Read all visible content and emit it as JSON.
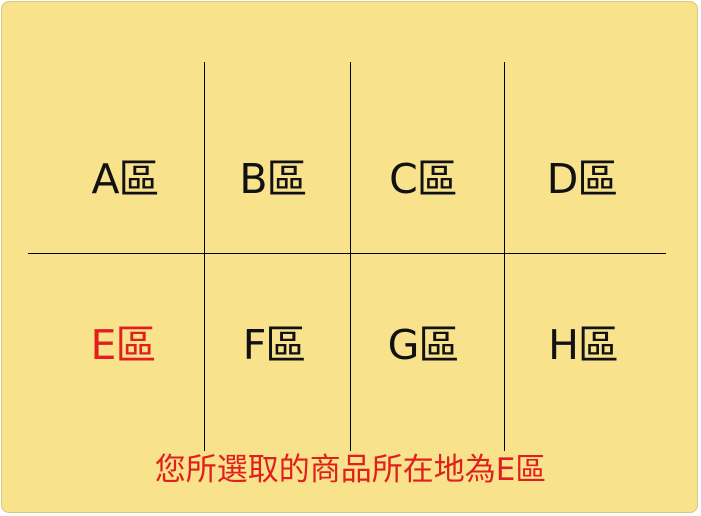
{
  "zones": [
    {
      "label": "A區",
      "selected": false
    },
    {
      "label": "B區",
      "selected": false
    },
    {
      "label": "C區",
      "selected": false
    },
    {
      "label": "D區",
      "selected": false
    },
    {
      "label": "E區",
      "selected": true
    },
    {
      "label": "F區",
      "selected": false
    },
    {
      "label": "G區",
      "selected": false
    },
    {
      "label": "H區",
      "selected": false
    }
  ],
  "message": "您所選取的商品所在地為E區",
  "colors": {
    "background": "#f8e28c",
    "text": "#111111",
    "selected": "#e0201e",
    "grid_line": "#000000"
  }
}
